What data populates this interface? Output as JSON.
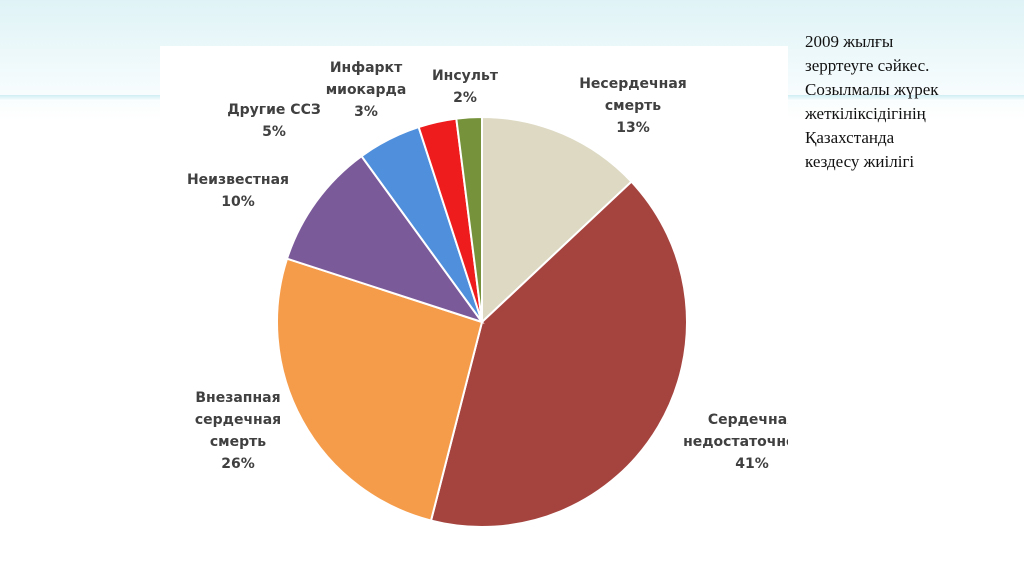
{
  "side_text": {
    "lines": [
      "2009 жылғы",
      "зерртеуге сәйкес.",
      "Созылмалы жүрек",
      "жеткіліксідігінің",
      "Қазахстанда",
      "кездесу жиілігі"
    ]
  },
  "chart_data": {
    "type": "pie",
    "title": "",
    "start_angle_deg": 0,
    "direction": "clockwise",
    "slices": [
      {
        "label": [
          "Несердечная",
          "смерть",
          "13%"
        ],
        "value": 13,
        "color": "#ddd9c3"
      },
      {
        "label": [
          "Сердечная",
          "недостаточность",
          "41%"
        ],
        "value": 41,
        "color": "#a5443f"
      },
      {
        "label": [
          "Внезапная",
          "сердечная",
          "смерть",
          "26%"
        ],
        "value": 26,
        "color": "#f59c4b"
      },
      {
        "label": [
          "Неизвестная",
          "10%"
        ],
        "value": 10,
        "color": "#7b5a9a"
      },
      {
        "label": [
          "Другие ССЗ",
          "5%"
        ],
        "value": 5,
        "color": "#4f8fdc"
      },
      {
        "label": [
          "Инфаркт",
          "миокарда",
          "3%"
        ],
        "value": 3,
        "color": "#ee1c1c"
      },
      {
        "label": [
          "Инсульт",
          "2%"
        ],
        "value": 2,
        "color": "#76933c"
      }
    ]
  }
}
